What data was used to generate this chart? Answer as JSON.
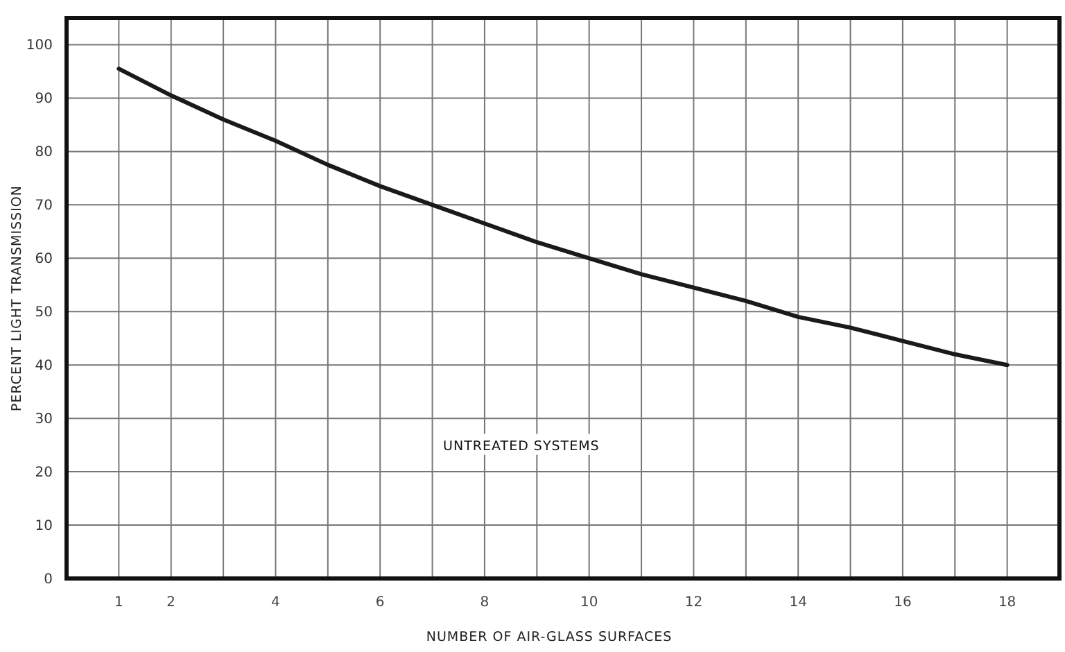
{
  "chart_data": {
    "type": "line",
    "xlabel": "NUMBER OF AIR-GLASS SURFACES",
    "ylabel": "PERCENT LIGHT TRANSMISSION",
    "x": [
      1,
      2,
      3,
      4,
      5,
      6,
      7,
      8,
      9,
      10,
      11,
      12,
      13,
      14,
      15,
      16,
      17,
      18
    ],
    "series": [
      {
        "color": "#1a1a1a",
        "values": [
          95.5,
          90.5,
          86,
          82,
          77.5,
          73.5,
          70,
          66.5,
          63,
          60,
          57,
          54.5,
          52,
          49,
          47,
          44.5,
          42,
          40
        ]
      }
    ],
    "xlim": [
      0,
      19
    ],
    "ylim": [
      0,
      105
    ],
    "xticks": [
      1,
      2,
      {
        "value": 3,
        "label": null
      },
      4,
      {
        "value": 5,
        "label": null
      },
      6,
      {
        "value": 7,
        "label": null
      },
      8,
      {
        "value": 9,
        "label": null
      },
      10,
      {
        "value": 11,
        "label": null
      },
      12,
      {
        "value": 13,
        "label": null
      },
      14,
      {
        "value": 15,
        "label": null
      },
      16,
      {
        "value": 17,
        "label": null
      },
      18
    ],
    "yticks": [
      0,
      10,
      20,
      30,
      40,
      50,
      60,
      70,
      80,
      90,
      100
    ],
    "grid": true,
    "marker": "none",
    "line_style": "solid",
    "annotations": [
      "UNTREATED SYSTEMS"
    ]
  }
}
